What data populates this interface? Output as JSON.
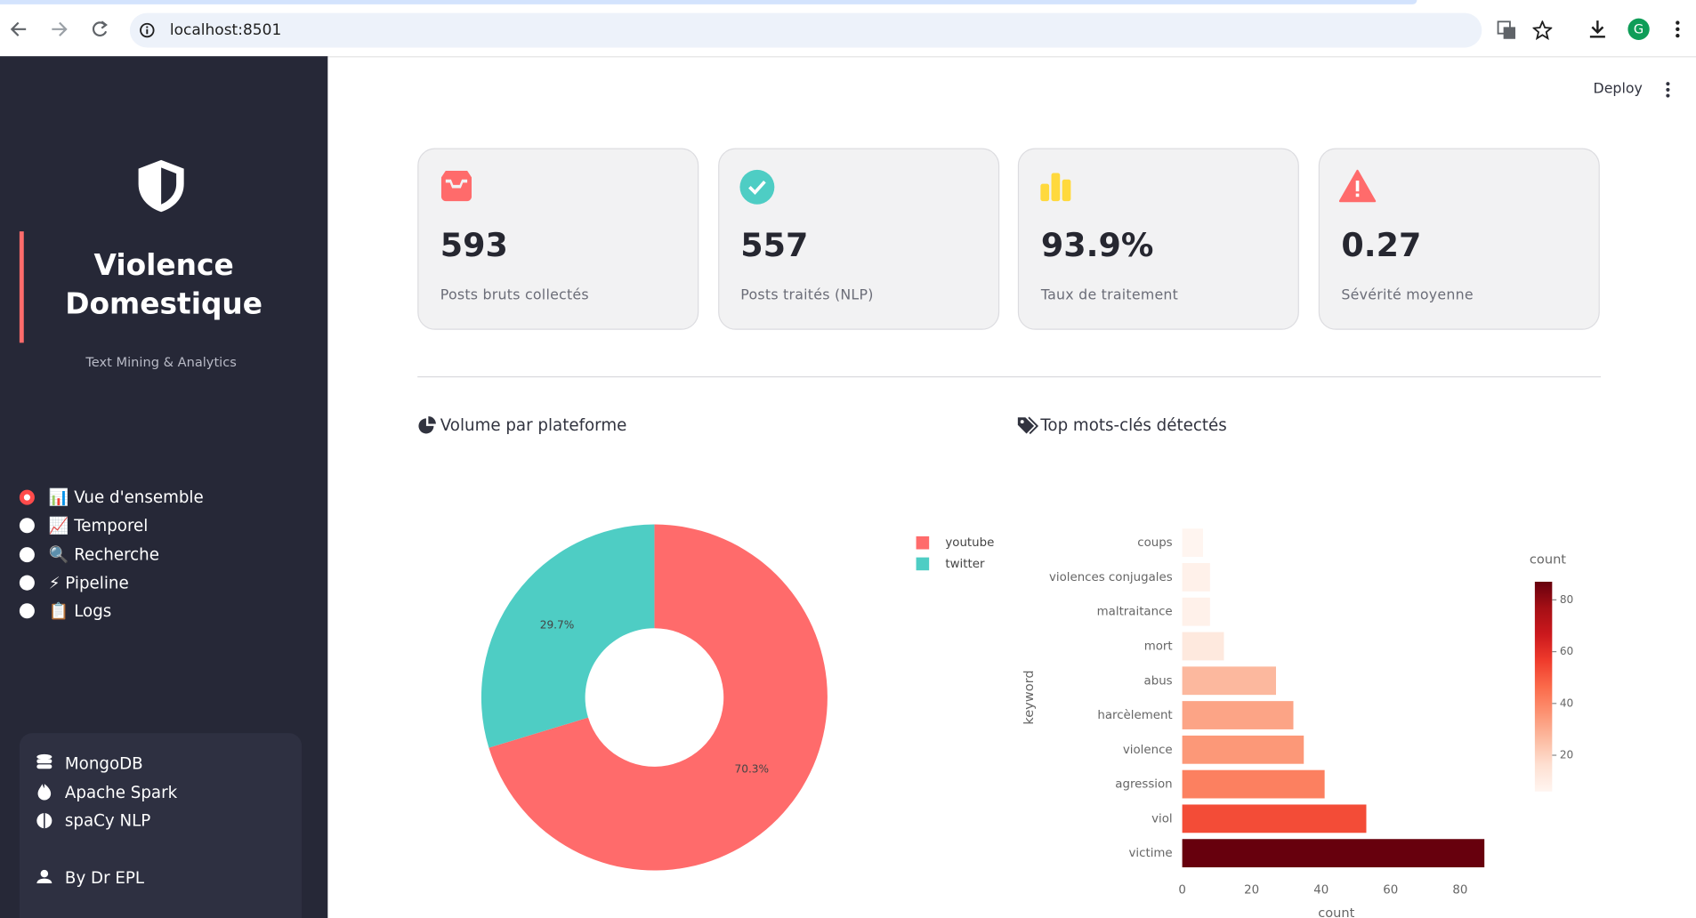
{
  "browser": {
    "url": "localhost:8501",
    "profile_initial": "G"
  },
  "sidebar": {
    "title_line1": "Violence",
    "title_line2": "Domestique",
    "subtitle": "Text Mining & Analytics",
    "nav": {
      "items": [
        "📊 Vue d'ensemble",
        "📈 Temporel",
        "🔍 Recherche",
        "⚡ Pipeline",
        "📋 Logs"
      ],
      "selected": 0
    },
    "tech": [
      "MongoDB",
      "Apache Spark",
      "spaCy NLP"
    ],
    "author": "By Dr EPL"
  },
  "header": {
    "deploy": "Deploy"
  },
  "metrics": [
    {
      "value": 593,
      "label": "Posts bruts collectés"
    },
    {
      "value": 557,
      "label": "Posts traités (NLP)"
    },
    {
      "value": "93.9%",
      "label": "Taux de traitement"
    },
    {
      "value": 0.27,
      "label": "Sévérité moyenne"
    }
  ],
  "sections": {
    "left": "Volume par plateforme",
    "right": "Top mots-clés détectés"
  },
  "chart_data": [
    {
      "type": "pie",
      "categories": [
        "youtube",
        "twitter"
      ],
      "values": [
        70.3,
        29.7
      ],
      "value_labels": [
        "70.3%",
        "29.7%"
      ],
      "colors": [
        "#ff6b6b",
        "#4ecdc4"
      ],
      "hole": 0.4
    },
    {
      "type": "bar",
      "orientation": "horizontal",
      "categories": [
        "coups",
        "violences conjugales",
        "maltraitance",
        "mort",
        "abus",
        "harcèlement",
        "violence",
        "agression",
        "viol",
        "victime"
      ],
      "values": [
        6,
        8,
        8,
        12,
        27,
        32,
        35,
        41,
        53,
        87
      ],
      "x_label": "count",
      "y_label": "keyword",
      "xlim": [
        0,
        90
      ],
      "xticks": [
        0,
        20,
        40,
        60,
        80
      ],
      "colorbar_title": "count",
      "colorbar_ticks": [
        20,
        40,
        60,
        80
      ],
      "colorscale": [
        "#fff5f0",
        "#fee0d2",
        "#fcbba1",
        "#fc9272",
        "#fb6a4a",
        "#ef3b2c",
        "#cb181d",
        "#a50f15",
        "#67000d"
      ]
    }
  ]
}
